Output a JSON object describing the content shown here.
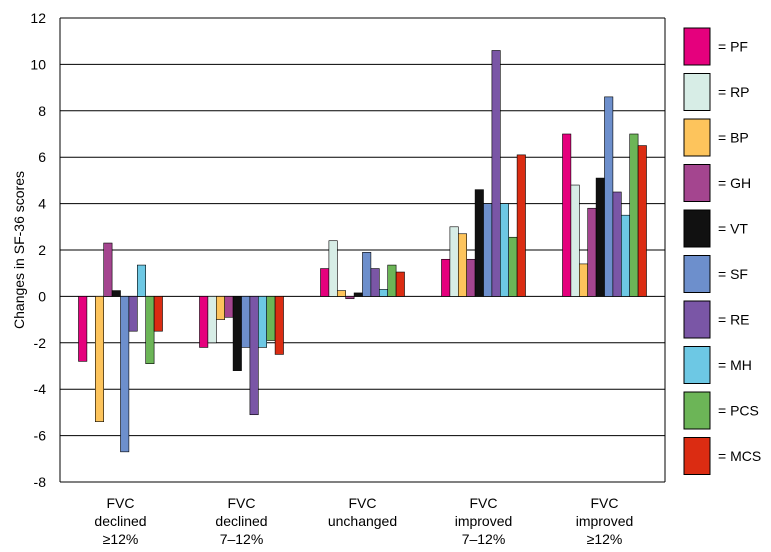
{
  "chart_data": {
    "type": "bar",
    "ylabel": "Changes in SF-36 scores",
    "ylim": [
      -8,
      12
    ],
    "yticks": [
      -8,
      -6,
      -4,
      -2,
      0,
      2,
      4,
      6,
      8,
      10,
      12
    ],
    "grid": "horizontal",
    "legend_position": "right",
    "legend_prefix": "= ",
    "categories": [
      [
        "FVC",
        "declined",
        "≥12%"
      ],
      [
        "FVC",
        "declined",
        "7–12%"
      ],
      [
        "FVC",
        "unchanged"
      ],
      [
        "FVC",
        "improved",
        "7–12%"
      ],
      [
        "FVC",
        "improved",
        "≥12%"
      ]
    ],
    "series": [
      {
        "name": "PF",
        "color": "#e5007d",
        "values": [
          -2.8,
          -2.2,
          1.2,
          1.6,
          7.0
        ]
      },
      {
        "name": "RP",
        "color": "#d7ede6",
        "values": [
          0.0,
          -2.0,
          2.4,
          3.0,
          4.8
        ]
      },
      {
        "name": "BP",
        "color": "#fdc45c",
        "values": [
          -5.4,
          -1.0,
          0.25,
          2.7,
          1.4
        ]
      },
      {
        "name": "GH",
        "color": "#a4458f",
        "values": [
          2.3,
          -0.9,
          -0.1,
          1.6,
          3.8
        ]
      },
      {
        "name": "VT",
        "color": "#111111",
        "values": [
          0.25,
          -3.2,
          0.15,
          4.6,
          5.1
        ]
      },
      {
        "name": "SF",
        "color": "#6d8fcc",
        "values": [
          -6.7,
          -2.2,
          1.9,
          4.0,
          8.6
        ]
      },
      {
        "name": "RE",
        "color": "#7a56a6",
        "values": [
          -1.5,
          -5.1,
          1.2,
          10.6,
          4.5
        ]
      },
      {
        "name": "MH",
        "color": "#6dc8e4",
        "values": [
          1.35,
          -2.2,
          0.3,
          4.0,
          3.5
        ]
      },
      {
        "name": "PCS",
        "color": "#6cb557",
        "values": [
          -2.9,
          -1.9,
          1.35,
          2.55,
          7.0
        ]
      },
      {
        "name": "MCS",
        "color": "#db2c12",
        "values": [
          -1.5,
          -2.5,
          1.05,
          6.1,
          6.5
        ]
      }
    ]
  }
}
